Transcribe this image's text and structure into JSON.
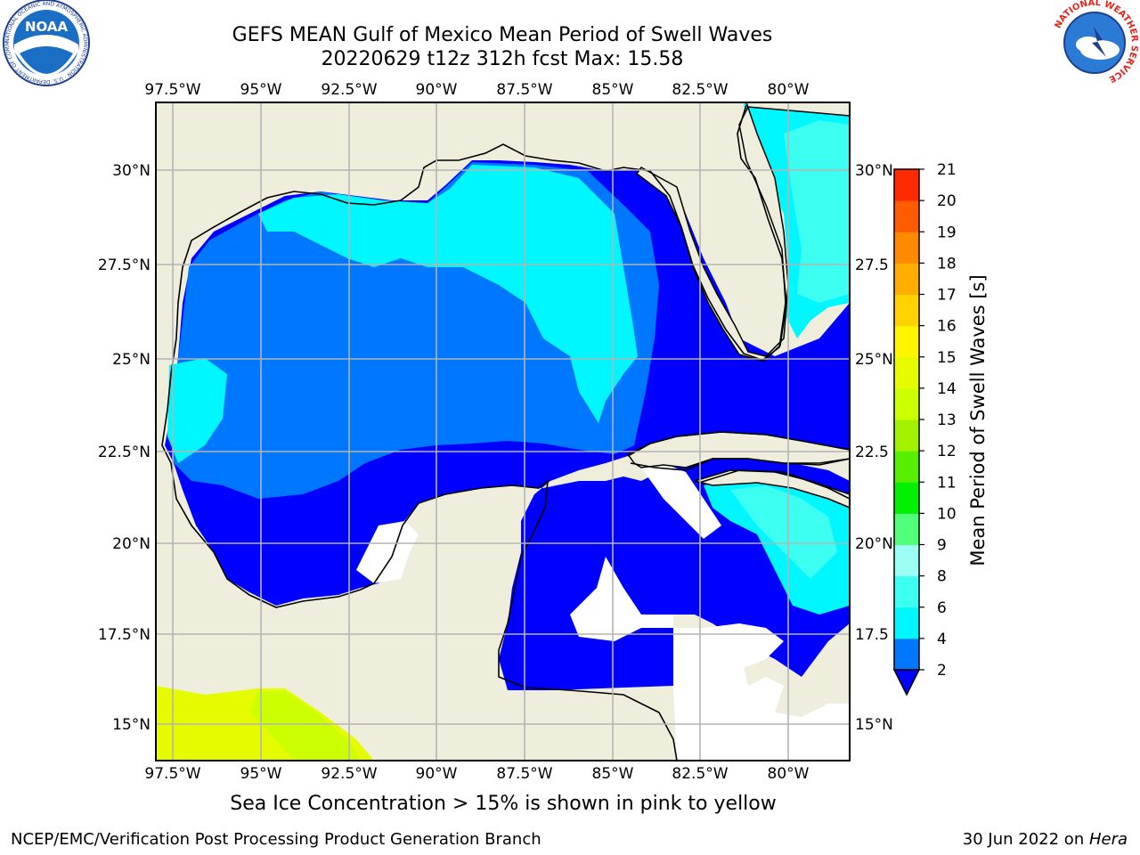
{
  "header": {
    "title_line1": "GEFS MEAN Gulf of Mexico Mean Period of Swell Waves",
    "title_line2": "20220629 t12z 312h fcst   Max: 15.58"
  },
  "logos": {
    "noaa_text": "NOAA",
    "noaa_ring_text": "NATIONAL OCEANIC AND ATMOSPHERIC ADMINISTRATION · U.S. DEPARTMENT OF COMMERCE",
    "nws_ring_text": "NATIONAL WEATHER SERVICE"
  },
  "map": {
    "lon_labels": [
      "97.5°W",
      "95°W",
      "92.5°W",
      "90°W",
      "87.5°W",
      "85°W",
      "82.5°W",
      "80°W"
    ],
    "lat_labels_left": [
      "30°N",
      "27.5°N",
      "25°N",
      "22.5°N",
      "20°N",
      "17.5°N",
      "15°N"
    ],
    "lat_labels_right": [
      "30°N",
      "27.5",
      "25°N",
      "22.5",
      "20°N",
      "17.5",
      "15°N"
    ],
    "colors": {
      "land": "#efeedc",
      "no_data": "#ffffff",
      "grid": "#b4b4b4",
      "coast": "#000000"
    }
  },
  "colorbar": {
    "label": "Mean Period of Swell Waves [s]",
    "ticks": [
      "2",
      "4",
      "6",
      "8",
      "9",
      "10",
      "11",
      "12",
      "13",
      "14",
      "15",
      "16",
      "17",
      "18",
      "19",
      "20",
      "21"
    ],
    "colors": [
      "#0000ff",
      "#0077ff",
      "#00f7ff",
      "#3dfff1",
      "#9cfff3",
      "#52ff7a",
      "#00f000",
      "#58ee00",
      "#a2f200",
      "#ccff00",
      "#e6fb00",
      "#fff500",
      "#ffd200",
      "#ffae00",
      "#ff8a00",
      "#ff5c00",
      "#ff2a00",
      "#ff0000"
    ]
  },
  "footer": {
    "ice_note": "Sea Ice Concentration > 15% is shown in pink to yellow",
    "credit_left": "NCEP/EMC/Verification Post Processing Product Generation Branch",
    "date_text": "30 Jun 2022 on ",
    "host": "Hera"
  }
}
